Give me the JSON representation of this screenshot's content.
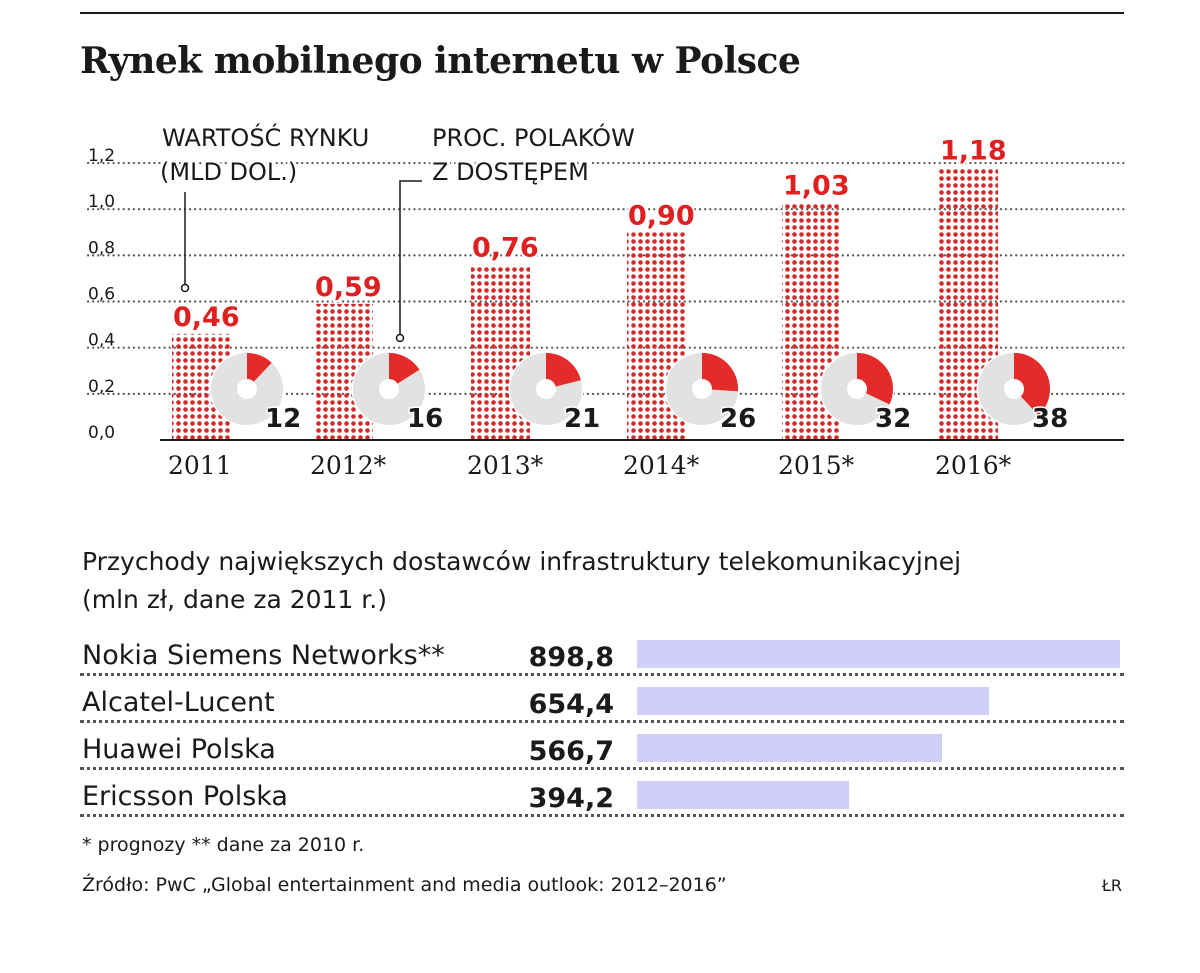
{
  "title": "Rynek mobilnego internetu w Polsce",
  "chart_data": {
    "type": "bar",
    "title": "Rynek mobilnego internetu w Polsce",
    "categories": [
      "2011",
      "2012*",
      "2013*",
      "2014*",
      "2015*",
      "2016*"
    ],
    "series": [
      {
        "name": "WARTOŚĆ RYNKU (MLD DOL.)",
        "values": [
          0.46,
          0.59,
          0.76,
          0.9,
          1.03,
          1.18
        ],
        "labels": [
          "0,46",
          "0,59",
          "0,76",
          "0,90",
          "1,03",
          "1,18"
        ]
      },
      {
        "name": "PROC. POLAKÓW Z DOSTĘPEM",
        "values": [
          12,
          16,
          21,
          26,
          32,
          38
        ]
      }
    ],
    "annotation_value": {
      "line1": "WARTOŚĆ RYNKU",
      "line2": "(MLD DOL.)"
    },
    "annotation_percent": {
      "line1": "PROC. POLAKÓW",
      "line2": "Z DOSTĘPEM"
    },
    "yticks": [
      "0,0",
      "0,2",
      "0,4",
      "0,6",
      "0,8",
      "1,0",
      "1,2"
    ],
    "ytick_values": [
      0,
      0.2,
      0.4,
      0.6,
      0.8,
      1.0,
      1.2
    ],
    "ylim": [
      0,
      1.2
    ],
    "grid": true,
    "colors": {
      "bar": "#d32b2b",
      "value_label": "#e02020",
      "donut_fill": "#e52a2a",
      "donut_track": "#e2e2e2",
      "axis": "#1a1a1a"
    }
  },
  "infra": {
    "title_line1": "Przychody największych dostawców infrastruktury telekomunikacyjnej",
    "title_line2": "(mln zł, dane za 2011 r.)",
    "bar_color": "#d0cffb",
    "max_value": 898.8,
    "rows": [
      {
        "name": "Nokia Siemens Networks**",
        "value_label": "898,8",
        "value": 898.8
      },
      {
        "name": "Alcatel-Lucent",
        "value_label": "654,4",
        "value": 654.4
      },
      {
        "name": "Huawei Polska",
        "value_label": "566,7",
        "value": 566.7
      },
      {
        "name": "Ericsson Polska",
        "value_label": "394,2",
        "value": 394.2
      }
    ]
  },
  "footnotes": {
    "line1": "* prognozy    ** dane za 2010 r.",
    "source": "Źródło: PwC „Global entertainment and media outlook: 2012–2016”",
    "credit": "ŁR"
  }
}
